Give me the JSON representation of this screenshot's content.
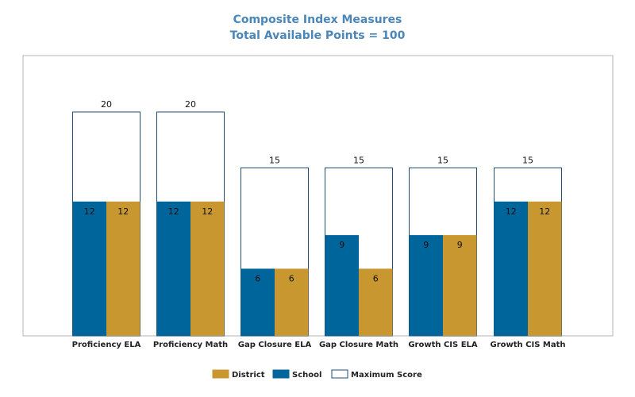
{
  "chart_data": {
    "type": "bar",
    "title": "Composite Index Measures",
    "subtitle": "Total Available Points = 100",
    "categories": [
      "Proficiency ELA",
      "Proficiency Math",
      "Gap Closure ELA",
      "Gap Closure Math",
      "Growth CIS ELA",
      "Growth CIS Math"
    ],
    "series": [
      {
        "name": "School",
        "color": "#00659b",
        "values": [
          12,
          12,
          6,
          9,
          9,
          12
        ]
      },
      {
        "name": "District",
        "color": "#c8972f",
        "values": [
          12,
          12,
          6,
          6,
          9,
          12
        ]
      },
      {
        "name": "Maximum Score",
        "color": "#ffffff",
        "stroke": "#1f4e79",
        "values": [
          20,
          20,
          15,
          15,
          15,
          15
        ]
      }
    ],
    "legend_order": [
      "District",
      "School",
      "Maximum Score"
    ],
    "legend_position": "bottom",
    "ylim": [
      0,
      24
    ],
    "grid": false
  }
}
